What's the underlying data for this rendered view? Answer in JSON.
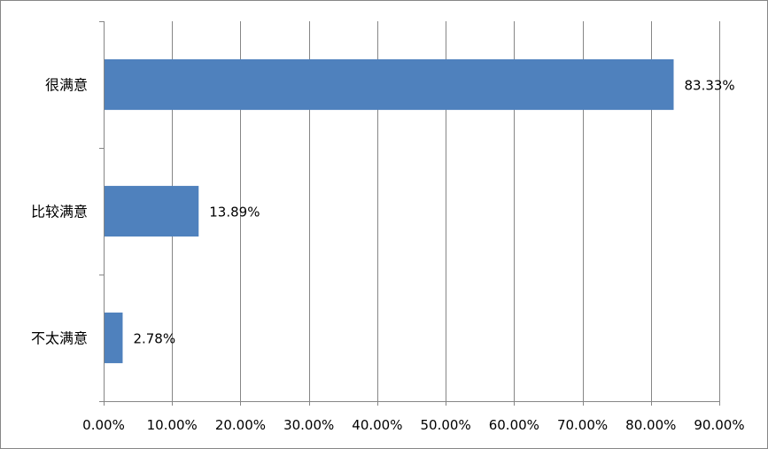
{
  "chart_data": {
    "type": "bar",
    "orientation": "horizontal",
    "categories": [
      "很满意",
      "比较满意",
      "不太满意"
    ],
    "values": [
      83.33,
      13.89,
      2.78
    ],
    "data_labels": [
      "83.33%",
      "13.89%",
      "2.78%"
    ],
    "xlim": [
      0,
      90
    ],
    "x_ticks": [
      0,
      10,
      20,
      30,
      40,
      50,
      60,
      70,
      80,
      90
    ],
    "x_tick_labels": [
      "0.00%",
      "10.00%",
      "20.00%",
      "30.00%",
      "40.00%",
      "50.00%",
      "60.00%",
      "70.00%",
      "80.00%",
      "90.00%"
    ],
    "grid": "vertical",
    "legend": "none",
    "title": "",
    "xlabel": "",
    "ylabel": "",
    "bar_color": "#4F81BD",
    "grid_color": "#868686"
  }
}
